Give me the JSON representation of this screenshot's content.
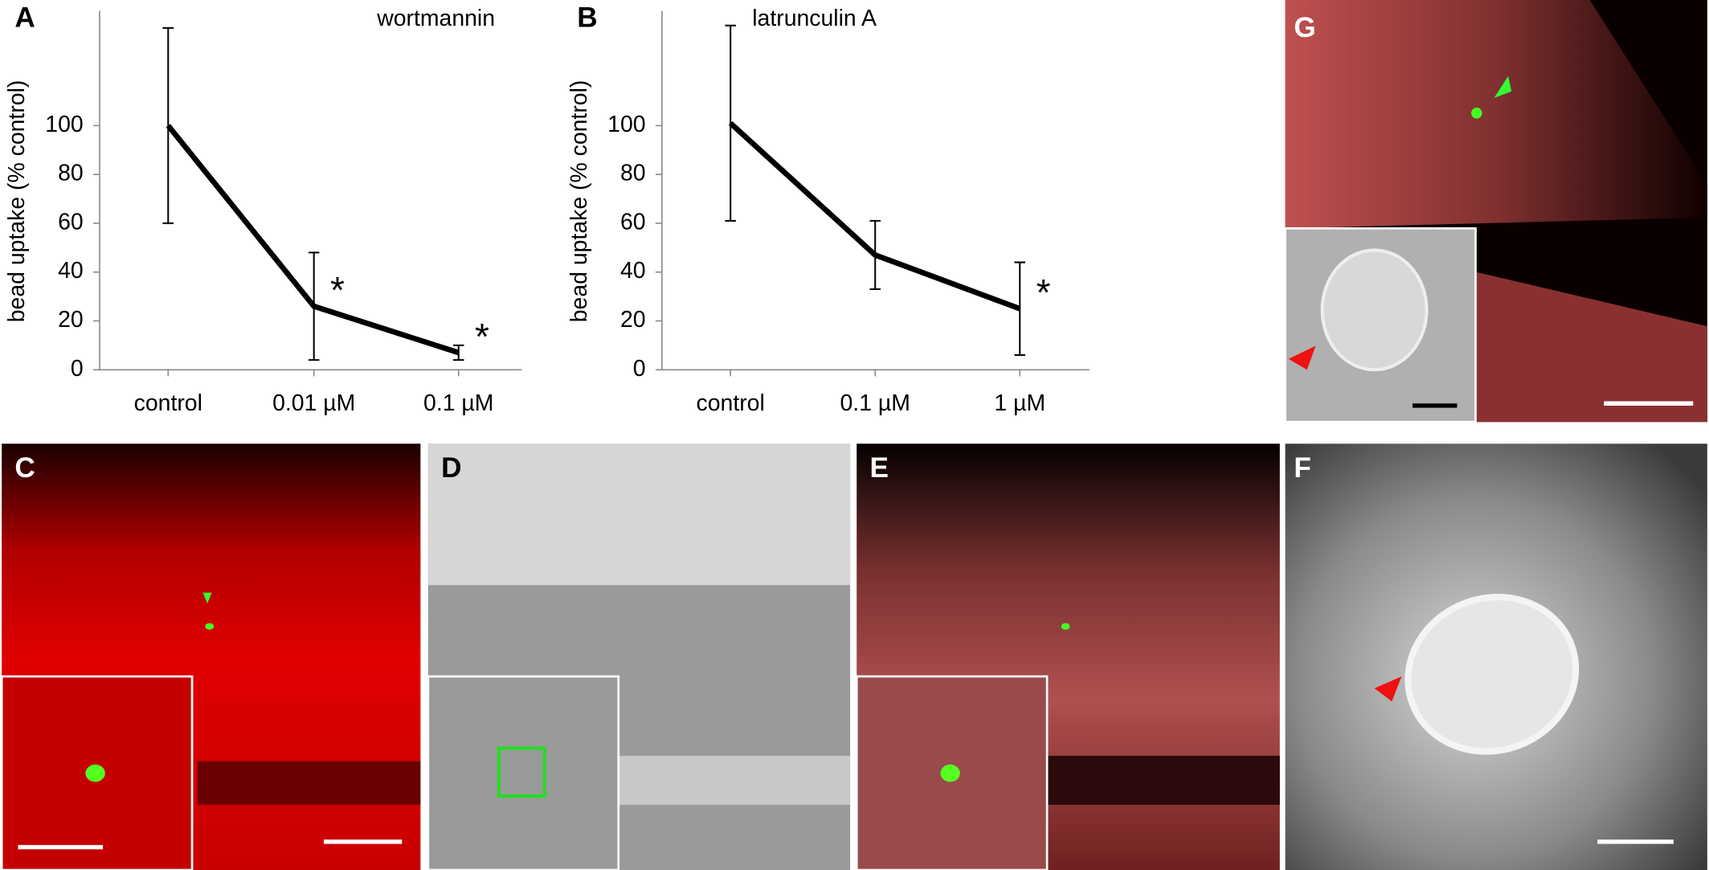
{
  "panel_labels": [
    "A",
    "B",
    "C",
    "D",
    "E",
    "F",
    "G"
  ],
  "chart_data": [
    {
      "type": "line",
      "title": "wortmannin",
      "y_label": "bead uptake (% control)",
      "categories": [
        "control",
        "0.01 µM",
        "0.1 µM"
      ],
      "values": [
        100,
        26,
        7
      ],
      "errors": [
        40,
        22,
        3
      ],
      "significance_marks": [
        null,
        "*",
        "*"
      ],
      "color": "#000000",
      "ylim": [
        0,
        147
      ],
      "yticks": [
        0,
        20,
        40,
        60,
        80,
        100
      ]
    },
    {
      "type": "line",
      "title": "latrunculin A",
      "y_label": "bead uptake (% control)",
      "categories": [
        "control",
        "0.1 µM",
        "1 µM"
      ],
      "values": [
        101,
        47,
        25
      ],
      "errors": [
        40,
        14,
        19
      ],
      "significance_marks": [
        null,
        null,
        "*"
      ],
      "color": "#000000",
      "ylim": [
        0,
        147
      ],
      "yticks": [
        0,
        20,
        40,
        60,
        80,
        100
      ]
    }
  ]
}
